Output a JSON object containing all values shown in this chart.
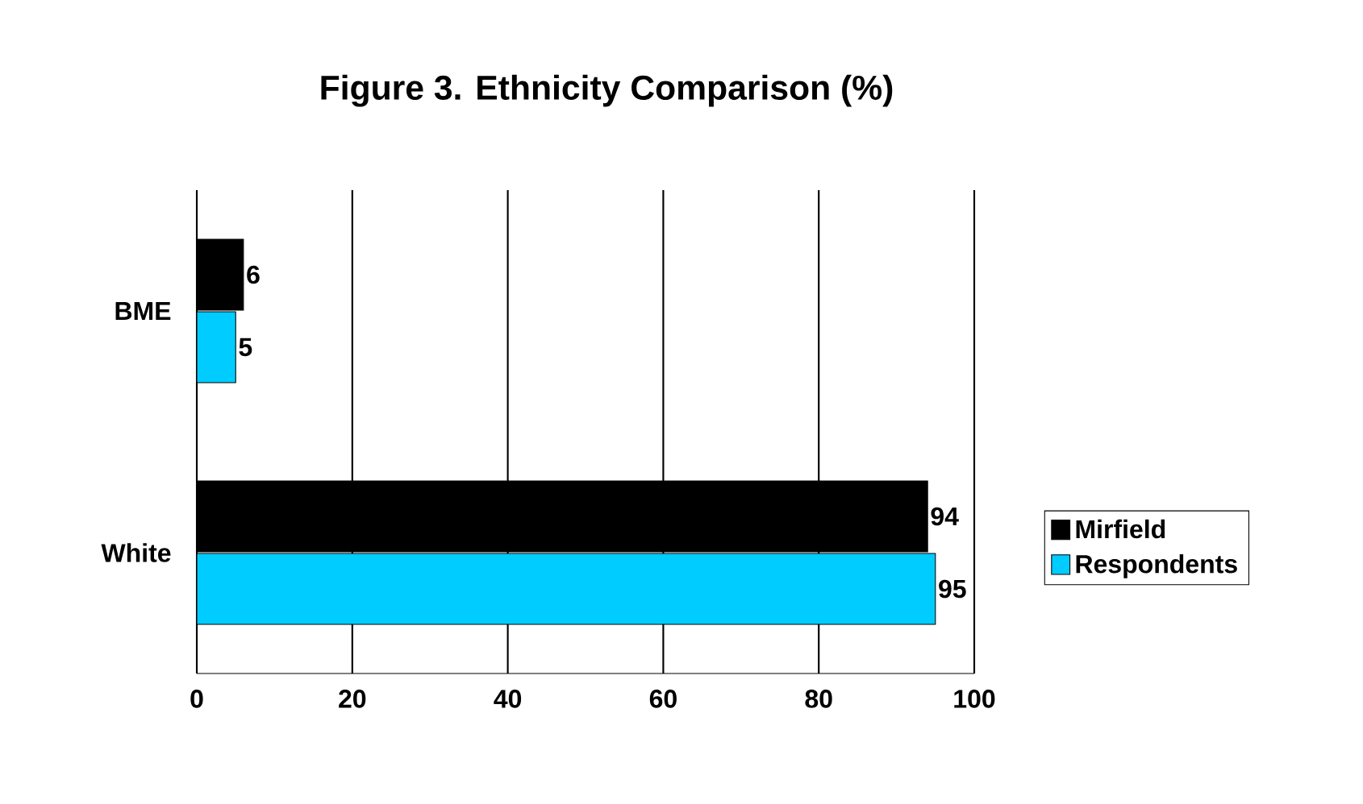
{
  "chart_data": {
    "type": "bar",
    "orientation": "horizontal",
    "title": "Figure 3. Ethnicity Comparison (%)",
    "categories": [
      "BME",
      "White"
    ],
    "series": [
      {
        "name": "Mirfield",
        "color": "#000000",
        "values": [
          6,
          94
        ]
      },
      {
        "name": "Respondents",
        "color": "#00ccff",
        "values": [
          5,
          95
        ]
      }
    ],
    "xlim": [
      0,
      100
    ],
    "xticks": [
      0,
      20,
      40,
      60,
      80,
      100
    ],
    "grid": "x",
    "legend": "right",
    "data_labels": true
  }
}
